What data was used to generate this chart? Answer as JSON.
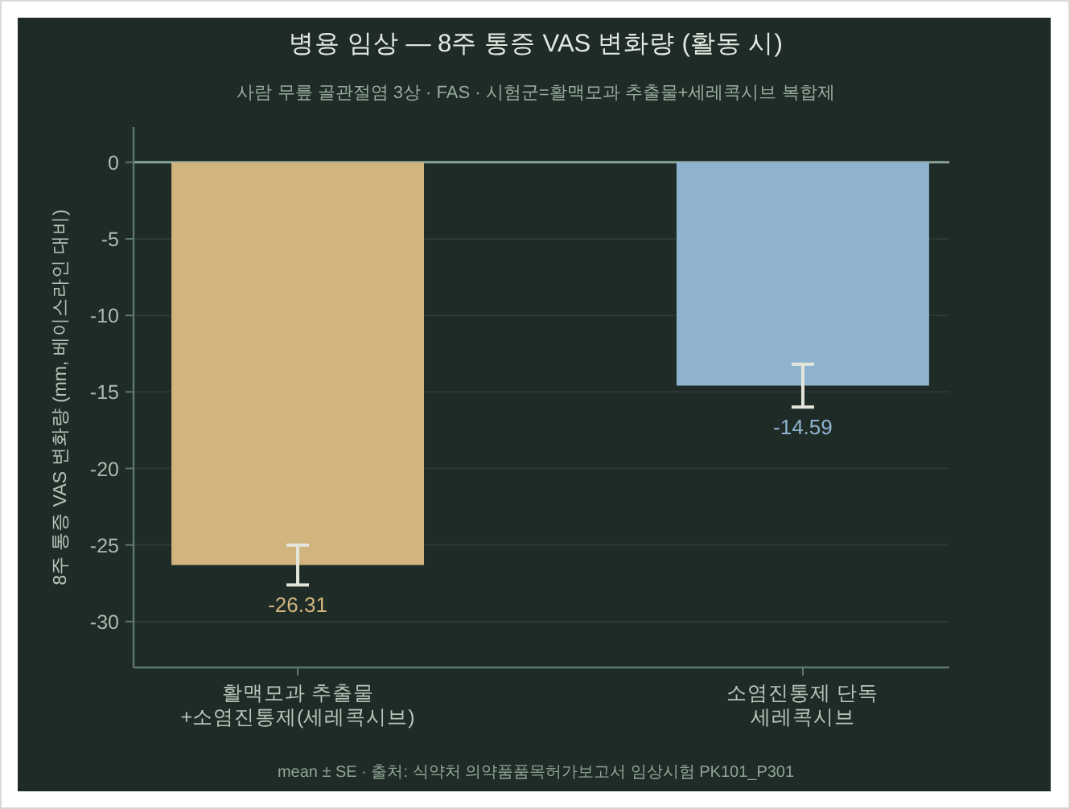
{
  "chart_data": {
    "type": "bar",
    "title": "병용 임상 — 8주 통증 VAS 변화량 (활동 시)",
    "subtitle": "사람 무릎 골관절염 3상 · FAS · 시험군=활맥모과 추출물+세레콕시브 복합제",
    "ylabel": "8주 통증 VAS 변화량 (mm, 베이스라인 대비)",
    "categories": [
      "활맥모과 추출물\n+소염진통제(세레콕시브)",
      "소염진통제 단독\n세레콕시브"
    ],
    "values": [
      -26.31,
      -14.59
    ],
    "colors": [
      "#d1b47e",
      "#8fb3cf"
    ],
    "errors": [
      1.3,
      1.4
    ],
    "data_labels": true,
    "ylim": [
      -33,
      2.3
    ],
    "yticks": [
      0,
      -5,
      -10,
      -15,
      -20,
      -25,
      -30
    ],
    "grid": "y",
    "ref_lines": [
      {
        "axis": "y",
        "value": 0,
        "color": "#8aa597"
      }
    ],
    "annotations": [
      "mean ± SE · 출처: 식약처 의약품품목허가보고서 임상시험 PK101_P301"
    ]
  }
}
